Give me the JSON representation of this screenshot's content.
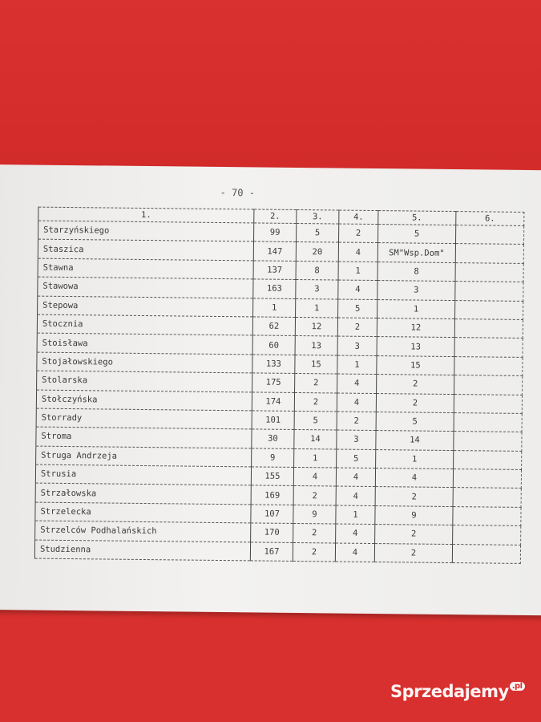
{
  "page_number": "- 70 -",
  "table": {
    "headers": [
      "1.",
      "2.",
      "3.",
      "4.",
      "5.",
      "6."
    ],
    "rows": [
      [
        "Starzyńskiego",
        "99",
        "5",
        "2",
        "5",
        ""
      ],
      [
        "Staszica",
        "147",
        "20",
        "4",
        "SM\"Wsp.Dom\"",
        ""
      ],
      [
        "Stawna",
        "137",
        "8",
        "1",
        "8",
        ""
      ],
      [
        "Stawowa",
        "163",
        "3",
        "4",
        "3",
        ""
      ],
      [
        "Stepowa",
        "1",
        "1",
        "5",
        "1",
        ""
      ],
      [
        "Stocznia",
        "62",
        "12",
        "2",
        "12",
        ""
      ],
      [
        "Stoisława",
        "60",
        "13",
        "3",
        "13",
        ""
      ],
      [
        "Stojałowskiego",
        "133",
        "15",
        "1",
        "15",
        ""
      ],
      [
        "Stolarska",
        "175",
        "2",
        "4",
        "2",
        ""
      ],
      [
        "Stołczyńska",
        "174",
        "2",
        "4",
        "2",
        ""
      ],
      [
        "Storrady",
        "101",
        "5",
        "2",
        "5",
        ""
      ],
      [
        "Stroma",
        "30",
        "14",
        "3",
        "14",
        ""
      ],
      [
        "Struga Andrzeja",
        "9",
        "1",
        "5",
        "1",
        ""
      ],
      [
        "Strusia",
        "155",
        "4",
        "4",
        "4",
        ""
      ],
      [
        "Strzałowska",
        "169",
        "2",
        "4",
        "2",
        ""
      ],
      [
        "Strzelecka",
        "107",
        "9",
        "1",
        "9",
        ""
      ],
      [
        "Strzelców Podhalańskich",
        "170",
        "2",
        "4",
        "2",
        ""
      ],
      [
        "Studzienna",
        "167",
        "2",
        "4",
        "2",
        ""
      ]
    ]
  },
  "watermark": {
    "text": "Sprzedajemy",
    "suffix": ".pl"
  },
  "colors": {
    "background": "#d8302e",
    "paper": "#efeeec",
    "ink": "#3a3a3a"
  }
}
